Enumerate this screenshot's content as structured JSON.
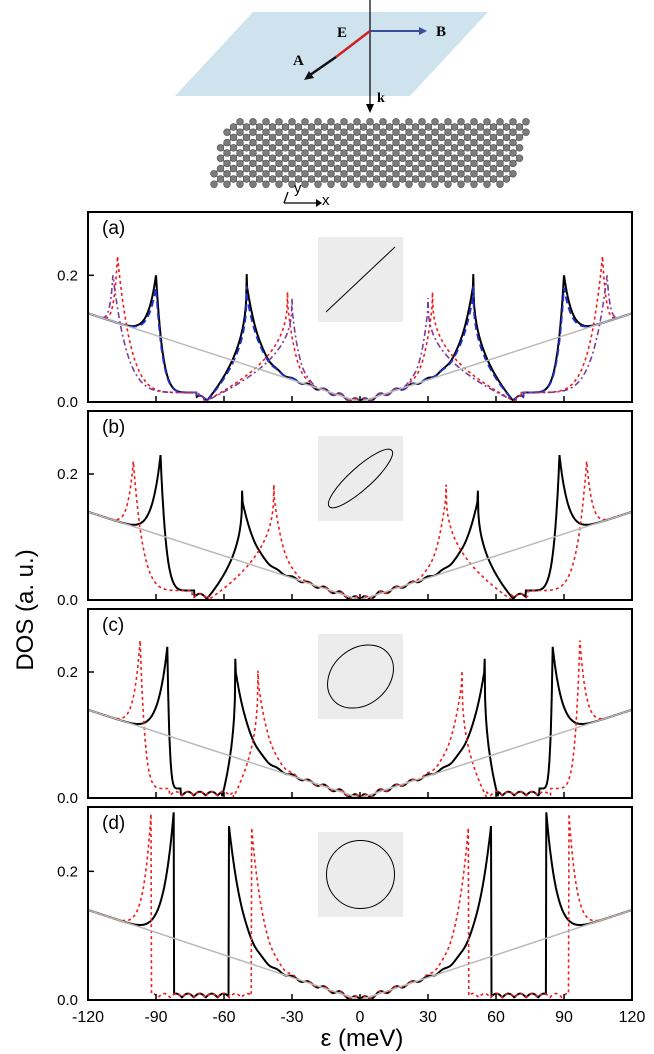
{
  "schematic": {
    "labels": {
      "E": "E",
      "B": "B",
      "A": "A",
      "k": "k",
      "x": "x",
      "y": "y"
    },
    "colors": {
      "plane": "#cfe3ee",
      "E": "#cc2222",
      "B": "#3a4d9a",
      "A": "#111111"
    }
  },
  "axes": {
    "ylabel": "DOS (a. u.)",
    "xlabel": "ε (meV)",
    "xticks": [
      "-120",
      "-90",
      "-60",
      "-30",
      "0",
      "30",
      "60",
      "90",
      "120"
    ],
    "yticks": [
      "0.0",
      "0.2"
    ]
  },
  "colors": {
    "solid": "#000000",
    "dotted": "#ee1c1c",
    "dashed_blue": "#1f2ecc",
    "dashed_purple": "#7d3c98",
    "bare": "#b9b9b9",
    "inset_bg": "#ececec"
  },
  "chart_data": [
    {
      "type": "line",
      "panel_label": "(a)",
      "xlim": [
        -120,
        120
      ],
      "ylim": [
        0,
        0.3
      ],
      "inset": "line",
      "series": [
        {
          "style": "solid-black",
          "peaks": [
            {
              "x": 50,
              "y": 0.2
            },
            {
              "x": 90,
              "y": 0.2
            }
          ],
          "gap": [
            68,
            72
          ]
        },
        {
          "style": "dashed-blue",
          "peaks": [
            {
              "x": 50,
              "y": 0.18
            },
            {
              "x": 90,
              "y": 0.18
            }
          ],
          "gap": [
            68,
            72
          ]
        },
        {
          "style": "dotted-red",
          "peaks": [
            {
              "x": 32,
              "y": 0.17
            },
            {
              "x": 107,
              "y": 0.23
            }
          ],
          "gap": [
            69,
            71
          ]
        },
        {
          "style": "dashed-purple",
          "peaks": [
            {
              "x": 30,
              "y": 0.16
            },
            {
              "x": 109,
              "y": 0.2
            }
          ],
          "gap": [
            69,
            71
          ]
        },
        {
          "style": "bare-gray",
          "points": [
            [
              -120,
              0.14
            ],
            [
              0,
              0
            ],
            [
              120,
              0.14
            ]
          ]
        }
      ]
    },
    {
      "type": "line",
      "panel_label": "(b)",
      "xlim": [
        -120,
        120
      ],
      "ylim": [
        0,
        0.3
      ],
      "inset": "narrow-ellipse",
      "series": [
        {
          "style": "solid-black",
          "peaks": [
            {
              "x": 52,
              "y": 0.17
            },
            {
              "x": 88,
              "y": 0.23
            }
          ],
          "gap": [
            68,
            73
          ]
        },
        {
          "style": "dotted-red",
          "peaks": [
            {
              "x": 38,
              "y": 0.18
            },
            {
              "x": 100,
              "y": 0.22
            }
          ],
          "gap": [
            67,
            74
          ]
        },
        {
          "style": "bare-gray",
          "points": [
            [
              -120,
              0.14
            ],
            [
              0,
              0
            ],
            [
              120,
              0.14
            ]
          ]
        }
      ]
    },
    {
      "type": "line",
      "panel_label": "(c)",
      "xlim": [
        -120,
        120
      ],
      "ylim": [
        0,
        0.3
      ],
      "inset": "wide-ellipse",
      "series": [
        {
          "style": "solid-black",
          "peaks": [
            {
              "x": 55,
              "y": 0.22
            },
            {
              "x": 85,
              "y": 0.24
            }
          ],
          "gap": [
            61,
            79
          ]
        },
        {
          "style": "dotted-red",
          "peaks": [
            {
              "x": 45,
              "y": 0.2
            },
            {
              "x": 97,
              "y": 0.25
            }
          ],
          "gap": [
            56,
            84
          ]
        },
        {
          "style": "bare-gray",
          "points": [
            [
              -120,
              0.14
            ],
            [
              0,
              0
            ],
            [
              120,
              0.14
            ]
          ]
        }
      ]
    },
    {
      "type": "line",
      "panel_label": "(d)",
      "xlim": [
        -120,
        120
      ],
      "ylim": [
        0,
        0.3
      ],
      "inset": "circle",
      "series": [
        {
          "style": "solid-black",
          "peaks": [
            {
              "x": 58,
              "y": 0.3
            },
            {
              "x": 82,
              "y": 0.3
            }
          ],
          "gap": [
            58,
            82
          ]
        },
        {
          "style": "dotted-red",
          "peaks": [
            {
              "x": 48,
              "y": 0.3
            },
            {
              "x": 92,
              "y": 0.3
            }
          ],
          "gap": [
            48,
            92
          ]
        },
        {
          "style": "bare-gray",
          "points": [
            [
              -120,
              0.14
            ],
            [
              0,
              0
            ],
            [
              120,
              0.14
            ]
          ]
        }
      ]
    }
  ]
}
